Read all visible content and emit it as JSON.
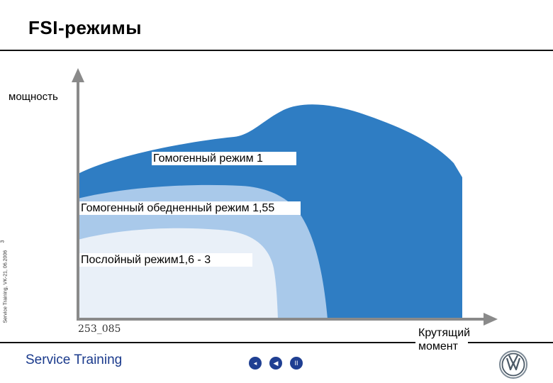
{
  "slide": {
    "title": "FSI-режимы",
    "side_note": "Service Training, VK-21, 06.2006",
    "page_number": "3"
  },
  "diagram": {
    "y_axis_label": "мощность",
    "x_axis_label_line1": "Крутящий",
    "x_axis_label_line2": "момент",
    "figure_id": "253_085",
    "regions": [
      {
        "label": "Гомогенный режим 1",
        "color": "#2f7dc3"
      },
      {
        "label": "Гомогенный обедненный режим 1,55",
        "color": "#a9c9ea"
      },
      {
        "label": "Послойный режим1,6 - 3",
        "color": "#e9f0f8"
      }
    ]
  },
  "footer": {
    "brand_text": "Service Training"
  },
  "nav": {
    "prev": "◂",
    "play": "◀",
    "pause": "II"
  },
  "logo": {
    "icon": "vw-logo-icon"
  }
}
